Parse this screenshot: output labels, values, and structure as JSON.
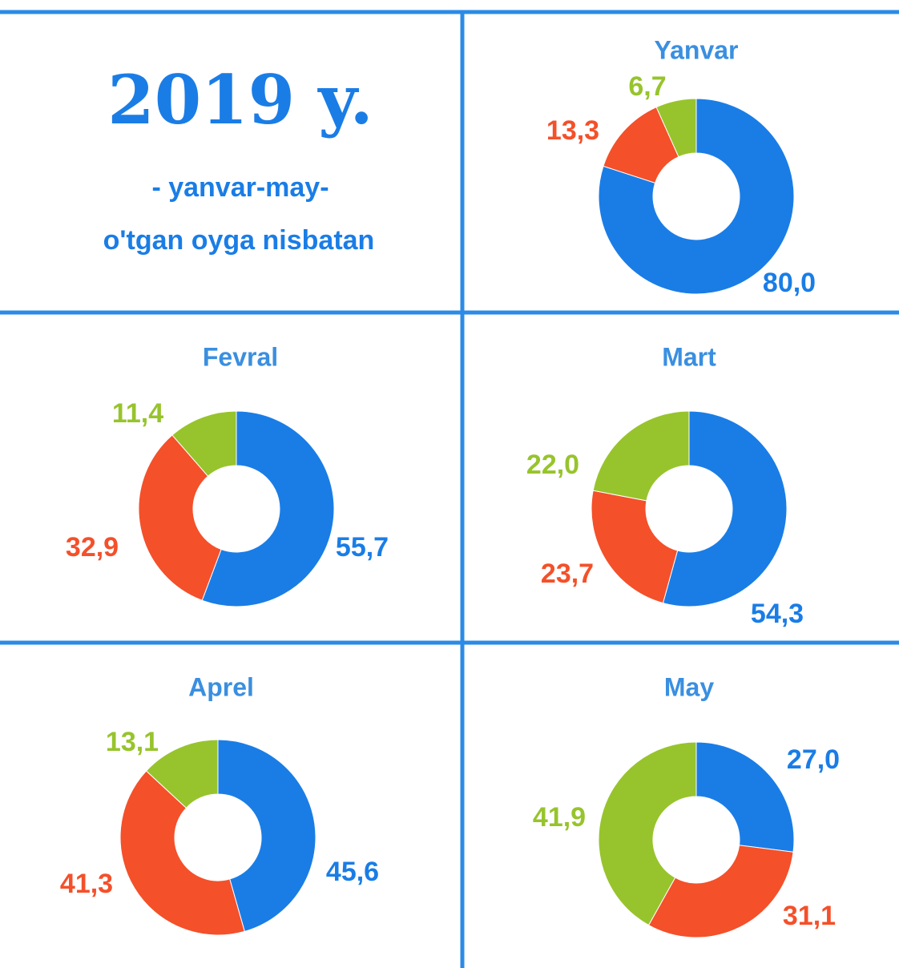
{
  "header": {
    "title": "2019 y.",
    "subtitle": "- yanvar-may-",
    "note": "o'tgan oyga nisbatan"
  },
  "chart_data": [
    {
      "type": "donut",
      "title": "Yanvar",
      "values": [
        80.0,
        13.3,
        6.7
      ],
      "value_labels": [
        "80,0",
        "13,3",
        "6,7"
      ],
      "colors": [
        "#1a7de6",
        "#f4502a",
        "#97c42c"
      ]
    },
    {
      "type": "donut",
      "title": "Fevral",
      "values": [
        55.7,
        32.9,
        11.4
      ],
      "value_labels": [
        "55,7",
        "32,9",
        "11,4"
      ],
      "colors": [
        "#1a7de6",
        "#f4502a",
        "#97c42c"
      ]
    },
    {
      "type": "donut",
      "title": "Mart",
      "values": [
        54.3,
        23.7,
        22.0
      ],
      "value_labels": [
        "54,3",
        "23,7",
        "22,0"
      ],
      "colors": [
        "#1a7de6",
        "#f4502a",
        "#97c42c"
      ]
    },
    {
      "type": "donut",
      "title": "Aprel",
      "values": [
        45.6,
        41.3,
        13.1
      ],
      "value_labels": [
        "45,6",
        "41,3",
        "13,1"
      ],
      "colors": [
        "#1a7de6",
        "#f4502a",
        "#97c42c"
      ]
    },
    {
      "type": "donut",
      "title": "May",
      "values": [
        27.0,
        31.1,
        41.9
      ],
      "value_labels": [
        "27,0",
        "31,1",
        "41,9"
      ],
      "colors": [
        "#1a7de6",
        "#f4502a",
        "#97c42c"
      ]
    }
  ]
}
